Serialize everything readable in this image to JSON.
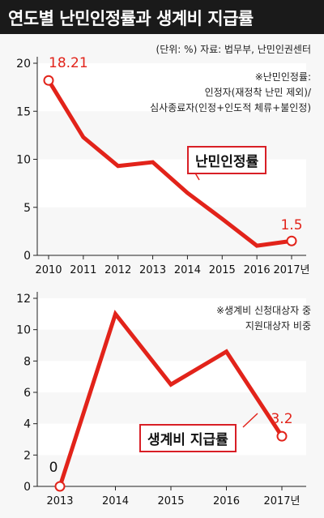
{
  "header": {
    "title": "연도별  난민인정률과 생계비 지급률"
  },
  "source": "(단위: %) 자료: 법무부, 난민인권센터",
  "colors": {
    "line": "#e2231a",
    "band": "#ffffff",
    "header_bg": "#1a1a1a"
  },
  "chart_data": [
    {
      "type": "line",
      "title": "",
      "label_box": "난민인정률",
      "note": [
        "※난민인정률:",
        "인정자(재정착 난민 제외)/",
        "심사종료자(인정+인도적 체류+불인정)"
      ],
      "x": [
        "2010",
        "2011",
        "2012",
        "2013",
        "2014",
        "2015",
        "2016",
        "2017년"
      ],
      "values": [
        18.21,
        12.3,
        9.3,
        9.7,
        6.5,
        3.8,
        1.0,
        1.5
      ],
      "yticks": [
        0,
        5,
        10,
        15,
        20
      ],
      "ylim": [
        0,
        20
      ],
      "endpoint_labels": {
        "first": "18.21",
        "last": "1.5"
      }
    },
    {
      "type": "line",
      "title": "",
      "label_box": "생계비 지급률",
      "note": [
        "※생계비 신청대상자 중",
        "지원대상자 비중"
      ],
      "x": [
        "2013",
        "2014",
        "2015",
        "2016",
        "2017년"
      ],
      "values": [
        0,
        11.0,
        6.5,
        8.6,
        3.2
      ],
      "yticks": [
        0,
        2,
        4,
        6,
        8,
        10,
        12
      ],
      "ylim": [
        0,
        12
      ],
      "endpoint_labels": {
        "first": "0",
        "last": "3.2"
      }
    }
  ]
}
